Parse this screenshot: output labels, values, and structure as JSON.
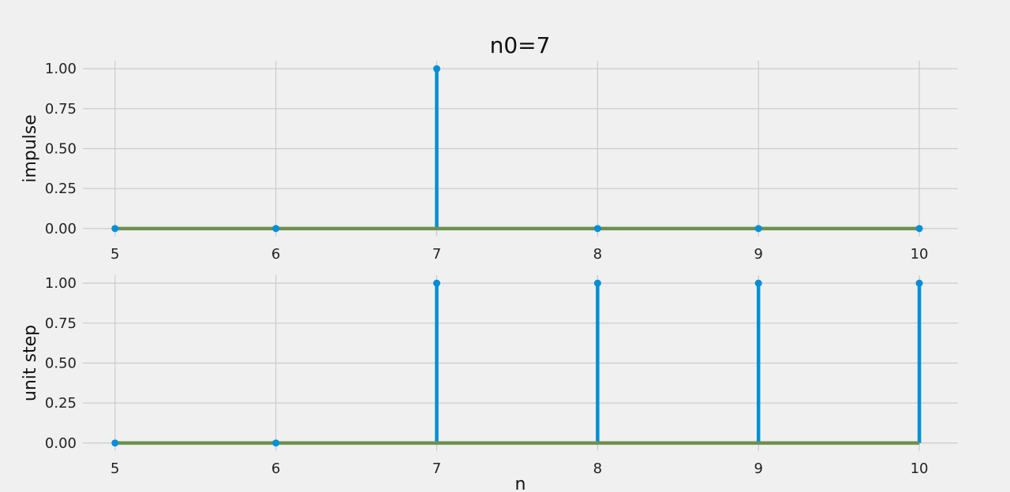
{
  "title": "n0=7",
  "colors": {
    "background": "#f0f0f0",
    "grid": "#cbcbcb",
    "stem": "#008fd5",
    "baseline": "#6d904f"
  },
  "chart_data": [
    {
      "type": "stem",
      "ylabel": "impulse",
      "xlabel": "",
      "x": [
        5,
        6,
        7,
        8,
        9,
        10
      ],
      "values": [
        0,
        0,
        1,
        0,
        0,
        0
      ],
      "xlim": [
        4.8,
        10.24
      ],
      "ylim": [
        -0.05,
        1.05
      ],
      "xticks": [
        "5",
        "6",
        "7",
        "8",
        "9",
        "10"
      ],
      "yticks": [
        "0.00",
        "0.25",
        "0.50",
        "0.75",
        "1.00"
      ],
      "grid": true
    },
    {
      "type": "stem",
      "ylabel": "unit step",
      "xlabel": "n",
      "x": [
        5,
        6,
        7,
        8,
        9,
        10
      ],
      "values": [
        0,
        0,
        1,
        1,
        1,
        1
      ],
      "xlim": [
        4.8,
        10.24
      ],
      "ylim": [
        -0.05,
        1.05
      ],
      "xticks": [
        "5",
        "6",
        "7",
        "8",
        "9",
        "10"
      ],
      "yticks": [
        "0.00",
        "0.25",
        "0.50",
        "0.75",
        "1.00"
      ],
      "grid": true
    }
  ]
}
